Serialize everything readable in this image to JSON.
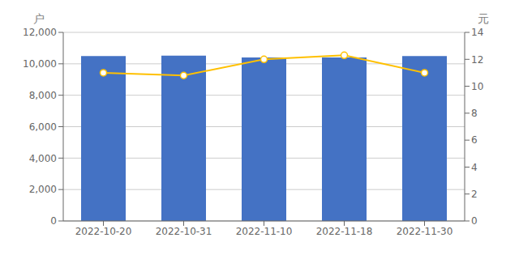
{
  "chart_data": {
    "type": "bar",
    "ylabel": "户",
    "y2label": "元",
    "categories": [
      "2022-10-20",
      "2022-10-31",
      "2022-11-10",
      "2022-11-18",
      "2022-11-30"
    ],
    "series": [
      {
        "type": "bar",
        "color": "#4472C4",
        "values": [
          10500,
          10520,
          10400,
          10400,
          10500
        ]
      },
      {
        "type": "line",
        "color": "#FFC000",
        "marker": "circle",
        "axis": "y2",
        "values": [
          11.0,
          10.8,
          12.0,
          12.3,
          11.0
        ]
      }
    ],
    "ylim": [
      0,
      12000
    ],
    "yticks": [
      0,
      {
        "value": 2000,
        "label": "2,000"
      },
      {
        "value": 4000,
        "label": "4,000"
      },
      {
        "value": 6000,
        "label": "6,000"
      },
      {
        "value": 8000,
        "label": "8,000"
      },
      {
        "value": 10000,
        "label": "10,000"
      },
      {
        "value": 12000,
        "label": "12,000"
      }
    ],
    "y2lim": [
      0,
      14
    ],
    "y2ticks": [
      0,
      2,
      4,
      6,
      8,
      10,
      12,
      14
    ],
    "grid": true
  }
}
